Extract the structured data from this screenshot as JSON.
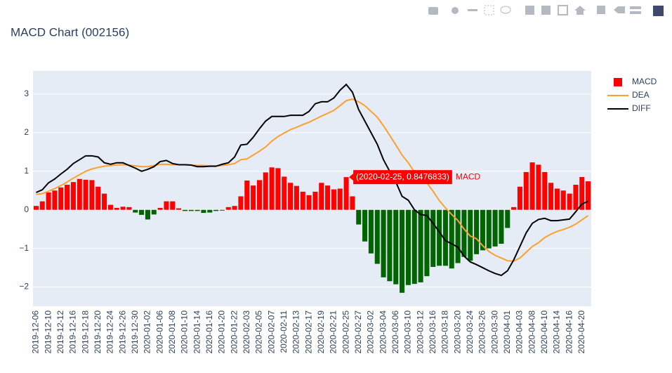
{
  "chart_data": {
    "type": "bar",
    "title": "MACD Chart (002156)",
    "categories": [
      "2019-12-06",
      null,
      "2019-12-10",
      null,
      "2019-12-12",
      null,
      "2019-12-16",
      null,
      "2019-12-18",
      null,
      "2019-12-20",
      null,
      "2019-12-24",
      null,
      "2019-12-26",
      null,
      "2019-12-30",
      null,
      "2020-01-02",
      null,
      "2020-01-06",
      null,
      "2020-01-08",
      null,
      "2020-01-10",
      null,
      "2020-01-14",
      null,
      "2020-01-16",
      null,
      "2020-01-20",
      null,
      "2020-01-22",
      null,
      "2020-02-03",
      null,
      "2020-02-05",
      null,
      "2020-02-07",
      null,
      "2020-02-11",
      null,
      "2020-02-13",
      null,
      "2020-02-17",
      null,
      "2020-02-19",
      null,
      "2020-02-21",
      null,
      "2020-02-25",
      null,
      "2020-02-27",
      null,
      "2020-03-02",
      null,
      "2020-03-04",
      null,
      "2020-03-06",
      null,
      "2020-03-10",
      null,
      "2020-03-12",
      null,
      "2020-03-16",
      null,
      "2020-03-18",
      null,
      "2020-03-20",
      null,
      "2020-03-24",
      null,
      "2020-03-26",
      null,
      "2020-03-30",
      null,
      "2020-04-01",
      null,
      "2020-04-03",
      null,
      "2020-04-08",
      null,
      "2020-04-10",
      null,
      "2020-04-14",
      null,
      "2020-04-16",
      null,
      "2020-04-20",
      null
    ],
    "series": [
      {
        "name": "MACD",
        "type": "bar",
        "colors": {
          "positive": "#ff0000",
          "negative": "#006400"
        },
        "values": [
          0.1,
          0.22,
          0.45,
          0.5,
          0.58,
          0.65,
          0.72,
          0.8,
          0.78,
          0.77,
          0.6,
          0.42,
          0.13,
          0.05,
          0.08,
          0.07,
          -0.07,
          -0.13,
          -0.25,
          -0.12,
          0.05,
          0.22,
          0.22,
          0.04,
          -0.03,
          -0.03,
          -0.03,
          -0.08,
          -0.07,
          -0.03,
          -0.02,
          0.07,
          0.1,
          0.35,
          0.76,
          0.63,
          0.77,
          0.97,
          1.1,
          1.08,
          0.86,
          0.7,
          0.62,
          0.47,
          0.38,
          0.47,
          0.7,
          0.63,
          0.53,
          0.55,
          0.8476833,
          0.35,
          -0.38,
          -0.82,
          -1.13,
          -1.4,
          -1.75,
          -1.85,
          -1.93,
          -2.15,
          -1.95,
          -1.92,
          -1.88,
          -1.72,
          -1.48,
          -1.45,
          -1.45,
          -1.52,
          -1.38,
          -1.22,
          -1.32,
          -1.15,
          -1.05,
          -1.0,
          -0.95,
          -0.88,
          -0.47,
          0.07,
          0.6,
          0.98,
          1.23,
          1.17,
          0.98,
          0.7,
          0.55,
          0.5,
          0.42,
          0.65,
          0.85,
          0.74
        ]
      },
      {
        "name": "DEA",
        "type": "line",
        "color": "#ff9f2e",
        "values": [
          0.4,
          0.42,
          0.48,
          0.55,
          0.63,
          0.72,
          0.82,
          0.91,
          1.0,
          1.06,
          1.1,
          1.13,
          1.15,
          1.16,
          1.17,
          1.16,
          1.14,
          1.12,
          1.12,
          1.15,
          1.18,
          1.18,
          1.17,
          1.17,
          1.17,
          1.16,
          1.15,
          1.15,
          1.14,
          1.14,
          1.15,
          1.17,
          1.2,
          1.3,
          1.32,
          1.42,
          1.52,
          1.63,
          1.78,
          1.9,
          1.99,
          2.08,
          2.14,
          2.21,
          2.27,
          2.35,
          2.43,
          2.5,
          2.58,
          2.7,
          2.83,
          2.87,
          2.8,
          2.7,
          2.55,
          2.4,
          2.18,
          1.93,
          1.68,
          1.42,
          1.22,
          0.98,
          0.82,
          0.7,
          0.48,
          0.24,
          0.05,
          -0.12,
          -0.28,
          -0.5,
          -0.68,
          -0.75,
          -0.93,
          -1.08,
          -1.18,
          -1.25,
          -1.32,
          -1.33,
          -1.25,
          -1.1,
          -0.95,
          -0.85,
          -0.72,
          -0.63,
          -0.56,
          -0.51,
          -0.45,
          -0.37,
          -0.26,
          -0.15
        ]
      },
      {
        "name": "DIFF",
        "type": "line",
        "color": "#000000",
        "values": [
          0.45,
          0.52,
          0.7,
          0.8,
          0.93,
          1.05,
          1.2,
          1.3,
          1.4,
          1.4,
          1.37,
          1.22,
          1.18,
          1.22,
          1.22,
          1.15,
          1.08,
          1.0,
          1.05,
          1.12,
          1.25,
          1.28,
          1.2,
          1.17,
          1.17,
          1.16,
          1.12,
          1.12,
          1.13,
          1.13,
          1.18,
          1.22,
          1.37,
          1.68,
          1.7,
          1.88,
          2.1,
          2.3,
          2.42,
          2.42,
          2.42,
          2.45,
          2.45,
          2.45,
          2.55,
          2.75,
          2.8,
          2.8,
          2.9,
          3.1,
          3.25,
          3.05,
          2.6,
          2.3,
          2.0,
          1.7,
          1.3,
          1.0,
          0.72,
          0.35,
          0.25,
          0.0,
          -0.12,
          -0.15,
          -0.35,
          -0.57,
          -0.8,
          -0.88,
          -0.97,
          -1.2,
          -1.35,
          -1.42,
          -1.5,
          -1.58,
          -1.65,
          -1.7,
          -1.58,
          -1.3,
          -0.95,
          -0.6,
          -0.35,
          -0.25,
          -0.22,
          -0.28,
          -0.28,
          -0.26,
          -0.24,
          -0.05,
          0.15,
          0.22
        ]
      }
    ],
    "ylim": [
      -2.5,
      3.6
    ],
    "yticks": [
      {
        "value": -2,
        "label": "−2"
      },
      {
        "value": -1,
        "label": "−1"
      },
      0,
      1,
      2,
      3
    ],
    "grid": true,
    "legend": "right",
    "hover": {
      "index": 50,
      "label": "(2020-02-25, 0.8476833)",
      "name": "MACD"
    }
  }
}
